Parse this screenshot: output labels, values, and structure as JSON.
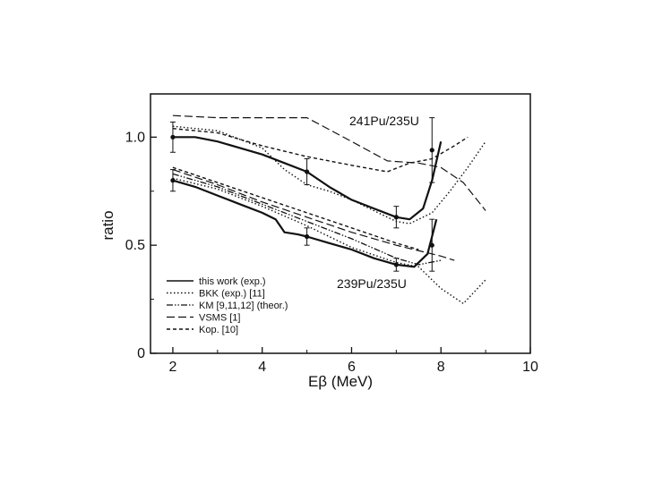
{
  "chart_data": {
    "type": "line",
    "xlabel": "Eβ (MeV)",
    "ylabel": "ratio",
    "xlim": [
      1.5,
      10
    ],
    "ylim": [
      0,
      1.2
    ],
    "x_ticks": [
      "2",
      "4",
      "6",
      "8",
      "10"
    ],
    "y_ticks": [
      "0",
      "0.5",
      "1.0"
    ],
    "grid": false,
    "legend_position": "bottom-left",
    "legend": [
      {
        "label": "this work (exp.)",
        "style": "solid"
      },
      {
        "label": "BKK (exp.) [11]",
        "style": "dotted"
      },
      {
        "label": "KM [9,11,12] (theor.)",
        "style": "dash-dot-dot"
      },
      {
        "label": "VSMS [1]",
        "style": "long-dash"
      },
      {
        "label": "Kop. [10]",
        "style": "short-dash"
      }
    ],
    "annotations": [
      {
        "label": "241Pu/235U",
        "x": 7.0,
        "y": 1.04
      },
      {
        "label": "239Pu/235U",
        "x": 6.4,
        "y": 0.33
      }
    ],
    "series": [
      {
        "group": "241Pu/235U",
        "style": "solid",
        "x": [
          2,
          2.5,
          3,
          3.5,
          4,
          4.5,
          5,
          5.5,
          6,
          6.5,
          7,
          7.3,
          7.6,
          7.8,
          8.0
        ],
        "y": [
          1.0,
          1.0,
          0.98,
          0.95,
          0.92,
          0.88,
          0.84,
          0.77,
          0.71,
          0.67,
          0.63,
          0.62,
          0.67,
          0.8,
          0.98
        ]
      },
      {
        "group": "241Pu/235U",
        "style": "dotted",
        "x": [
          2,
          3,
          4,
          4.5,
          5,
          5.5,
          6,
          6.5,
          7,
          7.3,
          7.8,
          8.2,
          8.6,
          9.0
        ],
        "y": [
          1.05,
          1.03,
          0.95,
          0.85,
          0.78,
          0.75,
          0.71,
          0.66,
          0.61,
          0.6,
          0.65,
          0.75,
          0.86,
          0.98
        ]
      },
      {
        "group": "241Pu/235U",
        "style": "long-dash",
        "x": [
          2,
          3,
          4,
          5,
          6,
          6.8,
          7.5,
          8.0,
          8.5,
          9.0
        ],
        "y": [
          1.1,
          1.09,
          1.09,
          1.09,
          0.98,
          0.89,
          0.88,
          0.86,
          0.79,
          0.66
        ]
      },
      {
        "group": "241Pu/235U",
        "style": "short-dash",
        "x": [
          2,
          3,
          4,
          5,
          6,
          6.8,
          7.3,
          7.8,
          8.3,
          8.6
        ],
        "y": [
          1.04,
          1.02,
          0.96,
          0.91,
          0.87,
          0.84,
          0.88,
          0.9,
          0.96,
          1.0
        ]
      },
      {
        "group": "239Pu/235U",
        "style": "solid",
        "x": [
          2,
          2.5,
          3,
          3.5,
          4,
          4.3,
          4.5,
          4.8,
          5,
          5.5,
          6,
          6.5,
          7,
          7.4,
          7.7,
          7.9
        ],
        "y": [
          0.8,
          0.77,
          0.73,
          0.69,
          0.65,
          0.62,
          0.56,
          0.55,
          0.54,
          0.51,
          0.48,
          0.44,
          0.41,
          0.4,
          0.46,
          0.62
        ]
      },
      {
        "group": "239Pu/235U",
        "style": "dotted",
        "x": [
          2,
          3,
          4,
          5,
          6,
          7,
          7.5,
          8.0,
          8.5,
          9.0
        ],
        "y": [
          0.81,
          0.76,
          0.68,
          0.59,
          0.49,
          0.42,
          0.4,
          0.3,
          0.23,
          0.34
        ]
      },
      {
        "group": "239Pu/235U",
        "style": "dash-dot-dot",
        "x": [
          2,
          3,
          4,
          5,
          6,
          7,
          7.5,
          8.0
        ],
        "y": [
          0.83,
          0.77,
          0.69,
          0.61,
          0.53,
          0.44,
          0.41,
          0.43
        ]
      },
      {
        "group": "239Pu/235U",
        "style": "long-dash",
        "x": [
          2,
          3,
          4,
          5,
          6,
          7,
          8,
          8.3
        ],
        "y": [
          0.85,
          0.78,
          0.7,
          0.63,
          0.56,
          0.5,
          0.45,
          0.43
        ]
      },
      {
        "group": "239Pu/235U",
        "style": "short-dash",
        "x": [
          2,
          3,
          4,
          5,
          6,
          7,
          7.5
        ],
        "y": [
          0.86,
          0.79,
          0.72,
          0.65,
          0.58,
          0.51,
          0.48
        ]
      }
    ],
    "points": [
      {
        "x": 2.0,
        "y": 1.0,
        "ylo": 0.93,
        "yhi": 1.07
      },
      {
        "x": 5.0,
        "y": 0.84,
        "ylo": 0.78,
        "yhi": 0.9
      },
      {
        "x": 7.0,
        "y": 0.63,
        "ylo": 0.58,
        "yhi": 0.68
      },
      {
        "x": 7.8,
        "y": 0.94,
        "ylo": 0.79,
        "yhi": 1.09
      },
      {
        "x": 2.0,
        "y": 0.8,
        "ylo": 0.75,
        "yhi": 0.85
      },
      {
        "x": 5.0,
        "y": 0.54,
        "ylo": 0.5,
        "yhi": 0.58
      },
      {
        "x": 7.0,
        "y": 0.41,
        "ylo": 0.38,
        "yhi": 0.44
      },
      {
        "x": 7.8,
        "y": 0.5,
        "ylo": 0.38,
        "yhi": 0.62
      }
    ]
  }
}
